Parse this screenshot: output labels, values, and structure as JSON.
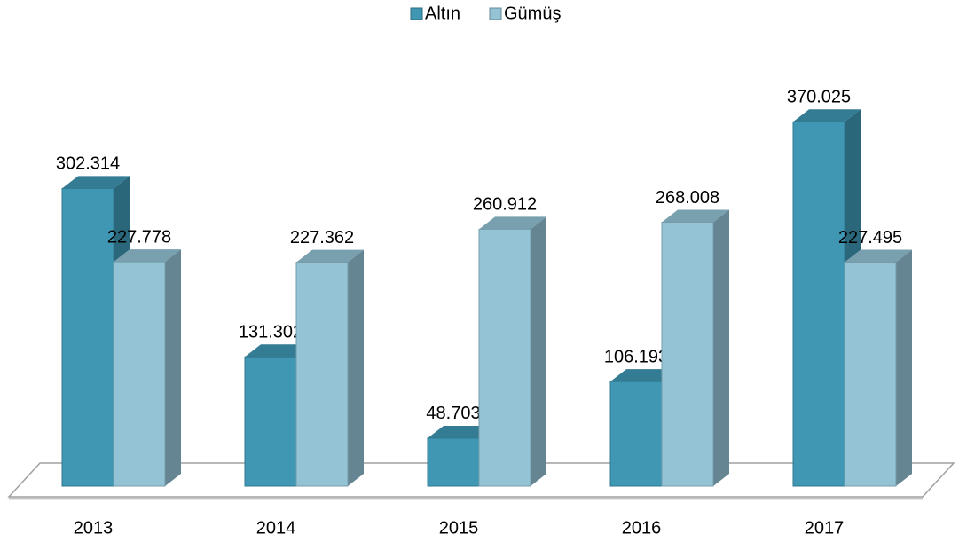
{
  "chart_data": {
    "type": "bar3d",
    "categories": [
      "2013",
      "2014",
      "2015",
      "2016",
      "2017"
    ],
    "series": [
      {
        "name": "Altın",
        "color": "#3f97b3",
        "values": [
          302.314,
          131.302,
          48.703,
          106.193,
          370.025
        ]
      },
      {
        "name": "Gümüş",
        "color": "#93c3d5",
        "values": [
          227.778,
          227.362,
          260.912,
          268.008,
          227.495
        ]
      }
    ],
    "legend": "top"
  }
}
